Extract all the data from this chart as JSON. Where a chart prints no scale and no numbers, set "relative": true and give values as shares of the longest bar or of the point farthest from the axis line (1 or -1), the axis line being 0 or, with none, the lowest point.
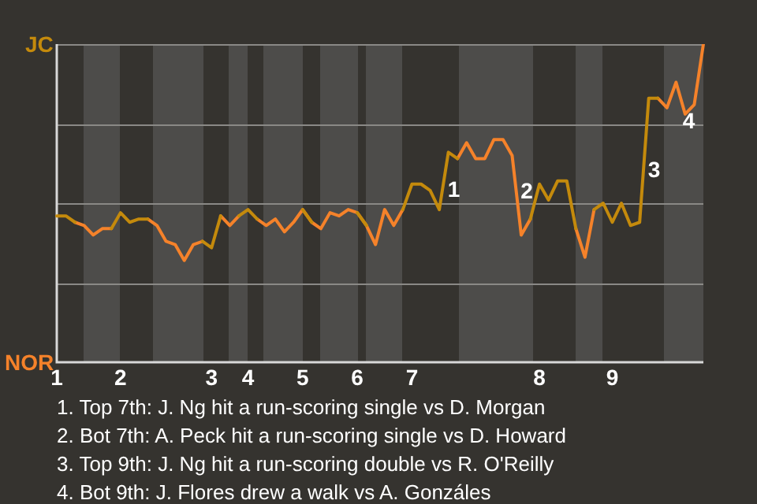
{
  "chart_data": {
    "type": "line",
    "relative": true,
    "categories": [
      "1",
      null,
      null,
      null,
      null,
      null,
      null,
      "2",
      null,
      null,
      null,
      null,
      null,
      null,
      null,
      null,
      null,
      "3",
      null,
      null,
      null,
      "4",
      null,
      null,
      null,
      null,
      null,
      "5",
      null,
      null,
      null,
      null,
      null,
      "6",
      null,
      null,
      null,
      null,
      null,
      "7",
      null,
      null,
      null,
      null,
      null,
      null,
      null,
      null,
      null,
      null,
      null,
      null,
      null,
      "8",
      null,
      null,
      null,
      null,
      null,
      null,
      null,
      "9",
      null,
      null,
      null,
      null,
      null,
      null,
      null,
      null,
      null,
      null
    ],
    "series": [
      {
        "color": "#c48a0c",
        "values": [
          0.46,
          0.46,
          0.44,
          null,
          null,
          null,
          0.42,
          0.47,
          0.44,
          0.45,
          0.45,
          null,
          null,
          null,
          null,
          null,
          0.38,
          0.36,
          0.46,
          null,
          0.46,
          0.48,
          0.45,
          null,
          null,
          null,
          null,
          0.48,
          0.44,
          null,
          null,
          null,
          null,
          0.47,
          0.43,
          null,
          null,
          null,
          0.48,
          0.56,
          0.56,
          0.54,
          0.48,
          0.66,
          0.64,
          null,
          null,
          null,
          null,
          null,
          null,
          null,
          0.45,
          0.56,
          0.51,
          0.57,
          0.57,
          0.42,
          null,
          0.48,
          0.5,
          0.44,
          0.5,
          0.43,
          0.44,
          0.83,
          0.83,
          null,
          null,
          null,
          null,
          null
        ]
      },
      {
        "color": "#f5822a",
        "values": [
          null,
          null,
          0.44,
          0.43,
          0.4,
          0.42,
          0.42,
          null,
          null,
          null,
          0.45,
          0.43,
          0.38,
          0.37,
          0.32,
          0.37,
          0.38,
          null,
          0.46,
          0.43,
          0.46,
          null,
          0.45,
          0.43,
          0.45,
          0.41,
          0.44,
          0.48,
          0.44,
          0.42,
          0.47,
          0.46,
          0.48,
          0.47,
          0.43,
          0.37,
          0.48,
          0.43,
          0.48,
          null,
          null,
          null,
          null,
          null,
          0.64,
          0.69,
          0.64,
          0.64,
          0.7,
          0.7,
          0.65,
          0.4,
          0.45,
          null,
          null,
          null,
          null,
          0.42,
          0.33,
          0.48,
          null,
          null,
          null,
          null,
          null,
          null,
          0.83,
          0.8,
          0.88,
          0.78,
          0.81,
          1
        ]
      }
    ],
    "legend": false,
    "marker": "none",
    "line_style": "solid",
    "annotations": [
      "JC",
      "NOR",
      "1",
      "2",
      "3",
      "4",
      "1. Top 7th: J. Ng hit a run-scoring single vs D. Morgan",
      "2. Bot 7th: A. Peck hit a run-scoring single vs D. Howard",
      "3. Top 9th: J. Ng hit a run-scoring double vs R. O'Reilly",
      "4. Bot 9th: J. Flores drew a walk vs A. Gonzáles"
    ]
  }
}
